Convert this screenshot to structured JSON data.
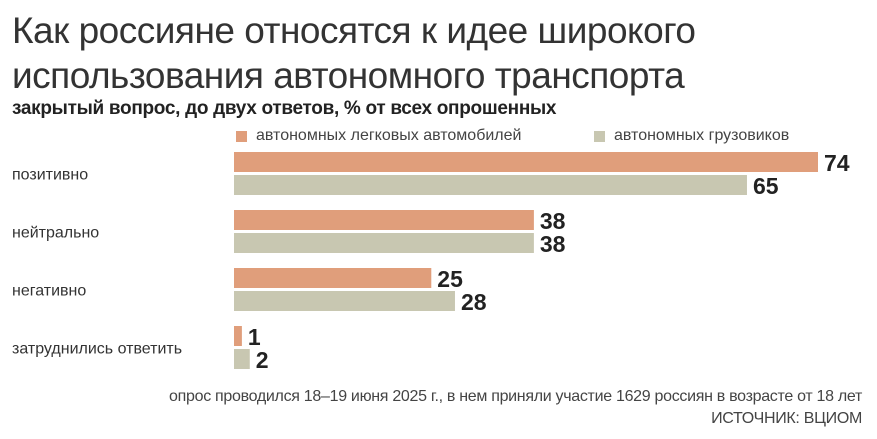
{
  "chart_data": {
    "type": "bar",
    "orientation": "horizontal",
    "title": "Как россияне относятся к идее широкого использования автономного транспорта",
    "title_lines": [
      "Как россияне относятся к идее широкого",
      "использования автономного транспорта"
    ],
    "subtitle": "закрытый вопрос, до двух ответов, % от всех опрошенных",
    "categories": [
      "позитивно",
      "нейтрально",
      "негативно",
      "затруднились ответить"
    ],
    "series": [
      {
        "name": "автономных легковых автомобилей",
        "color": "#E09E7B",
        "values": [
          74,
          38,
          25,
          1
        ]
      },
      {
        "name": "автономных грузовиков",
        "color": "#C8C7B1",
        "values": [
          65,
          38,
          28,
          2
        ]
      }
    ],
    "xlim": [
      0,
      74
    ],
    "grid": false,
    "legend_position": "top",
    "data_labels": true
  },
  "footer": {
    "note": "опрос проводился 18–19 июня 2025 г., в нем приняли участие 1629 россиян в возрасте от 18 лет",
    "source": "ИСТОЧНИК: ВЦИОМ"
  }
}
